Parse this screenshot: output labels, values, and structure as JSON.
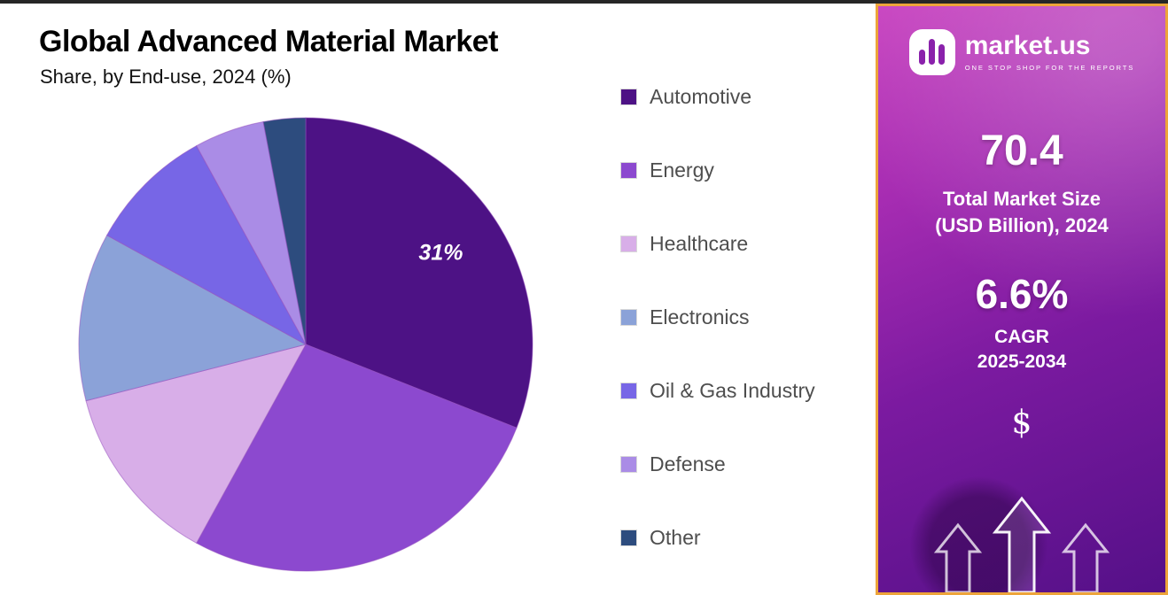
{
  "page": {
    "title": "Global Advanced Material Market",
    "subtitle": "Share, by End-use, 2024 (%)"
  },
  "chart_data": {
    "type": "pie",
    "title": "Global Advanced Material Market",
    "subtitle": "Share, by End-use, 2024 (%)",
    "unit": "%",
    "categories": [
      "Automotive",
      "Energy",
      "Healthcare",
      "Electronics",
      "Oil & Gas Industry",
      "Defense",
      "Other"
    ],
    "values": [
      31,
      27,
      13,
      12,
      9,
      5,
      3
    ],
    "colors": [
      "#4d1285",
      "#8c49cf",
      "#d8aee8",
      "#8ba2d8",
      "#7766e6",
      "#aa8ce6",
      "#2d4c7e"
    ],
    "labels": [
      "31%",
      "",
      "",
      "",
      "",
      "",
      ""
    ],
    "start_angle_deg": 0,
    "direction": "clockwise",
    "legend_position": "right",
    "grid": false
  },
  "sidebar": {
    "brand": {
      "name": "market.us",
      "tagline": "ONE STOP SHOP FOR THE REPORTS"
    },
    "stats": [
      {
        "value": "70.4",
        "line1": "Total Market Size",
        "line2": "(USD Billion), 2024"
      },
      {
        "value": "6.6%",
        "line1": "CAGR",
        "line2": "2025-2034"
      }
    ],
    "dollar_symbol": "$",
    "accent_border_color": "#eda43a"
  }
}
